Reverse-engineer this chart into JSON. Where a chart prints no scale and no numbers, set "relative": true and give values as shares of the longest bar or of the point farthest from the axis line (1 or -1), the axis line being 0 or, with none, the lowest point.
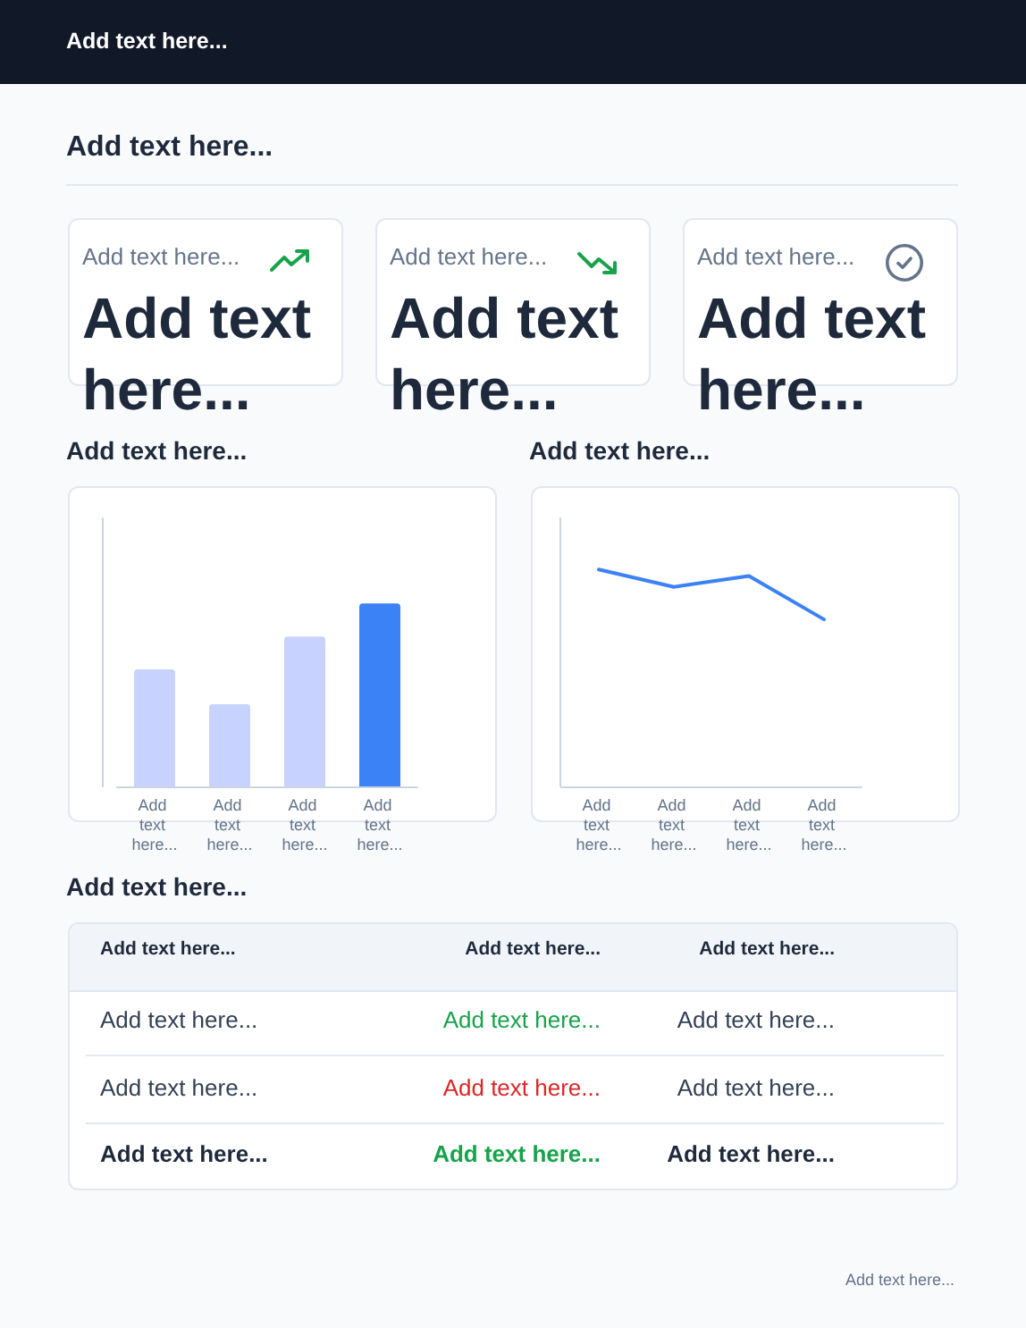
{
  "chart_data": [
    {
      "type": "other",
      "title": "Add text here...",
      "subtitle": "Add text here...",
      "annotations": [
        "Add text here..."
      ]
    },
    {
      "type": "other",
      "title": "Add text here...",
      "annotations": [
        "Add text here..."
      ]
    },
    {
      "type": "other",
      "title": "Add text here...",
      "annotations": [
        "Add text here..."
      ]
    },
    {
      "type": "other",
      "title": "Add text here...",
      "annotations": [
        "Add text here..."
      ]
    },
    {
      "type": "bar",
      "title": "Add text here...",
      "categories": [
        "Add text here...",
        "Add text here...",
        "Add text here...",
        "Add text here..."
      ],
      "values": [
        0.64,
        0.45,
        0.82,
        1
      ],
      "colors": [
        "#c7d2fe",
        "#c7d2fe",
        "#c7d2fe",
        "#3b82f6"
      ],
      "relative": true
    },
    {
      "type": "line",
      "title": "Add text here...",
      "categories": [
        "Add text here...",
        "Add text here...",
        "Add text here...",
        "Add text here..."
      ],
      "values": [
        1,
        0.92,
        0.97,
        0.77
      ],
      "color": "#3b82f6",
      "relative": true
    },
    {
      "type": "other",
      "title": "Add text here...",
      "annotations": [
        "Add text here...",
        "Add text here...",
        "Add text here...",
        "Add text here...",
        "Add text here...",
        "Add text here...",
        "Add text here...",
        "Add text here...",
        "Add text here...",
        "Add text here...",
        "Add text here...",
        "Add text here..."
      ]
    }
  ]
}
